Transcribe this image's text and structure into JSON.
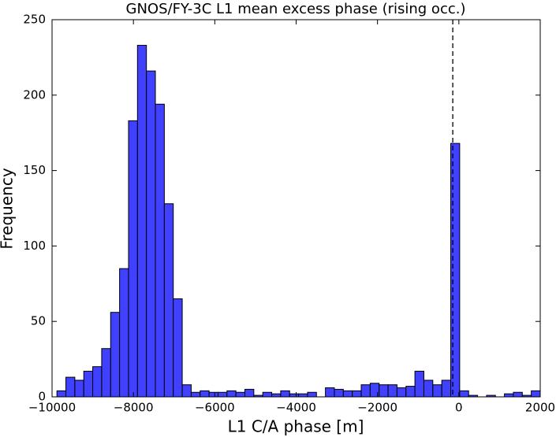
{
  "chart_data": {
    "type": "histogram",
    "title": "GNOS/FY-3C L1 mean excess phase (rising occ.)",
    "x_label": "L1 C/A phase [m]",
    "y_label": "Frequency",
    "bins": [
      -9880,
      -9660,
      -9440,
      -9220,
      -9000,
      -8780,
      -8560,
      -8340,
      -8120,
      -7900,
      -7680,
      -7460,
      -7240,
      -7020,
      -6800,
      -6580,
      -6360,
      -6140,
      -5920,
      -5700,
      -5480,
      -5260,
      -5040,
      -4820,
      -4600,
      -4380,
      -4160,
      -3940,
      -3720,
      -3500,
      -3280,
      -3060,
      -2840,
      -2620,
      -2400,
      -2180,
      -1960,
      -1740,
      -1520,
      -1300,
      -1080,
      -860,
      -640,
      -420,
      -200,
      20,
      240,
      460,
      680,
      900,
      1120,
      1340,
      1560,
      1780,
      2000
    ],
    "values": [
      4,
      13,
      11,
      17,
      20,
      32,
      56,
      85,
      183,
      233,
      216,
      194,
      128,
      65,
      8,
      3,
      4,
      3,
      3,
      4,
      3,
      5,
      1,
      3,
      2,
      4,
      2,
      2,
      3,
      0,
      6,
      5,
      4,
      4,
      8,
      9,
      8,
      8,
      6,
      7,
      17,
      11,
      8,
      11,
      168,
      4,
      1,
      0,
      1,
      0,
      2,
      3,
      1,
      4
    ],
    "color": "#4040ff",
    "vline": -150,
    "xlim": [
      -10000,
      2000
    ],
    "xticks": [
      {
        "value": -10000,
        "label": "−10000"
      },
      {
        "value": -8000,
        "label": "−8000"
      },
      {
        "value": -6000,
        "label": "−6000"
      },
      {
        "value": -4000,
        "label": "−4000"
      },
      {
        "value": -2000,
        "label": "−2000"
      },
      0,
      2000
    ],
    "ylim": [
      0,
      250
    ],
    "yticks": [
      0,
      50,
      100,
      150,
      200,
      250
    ]
  }
}
